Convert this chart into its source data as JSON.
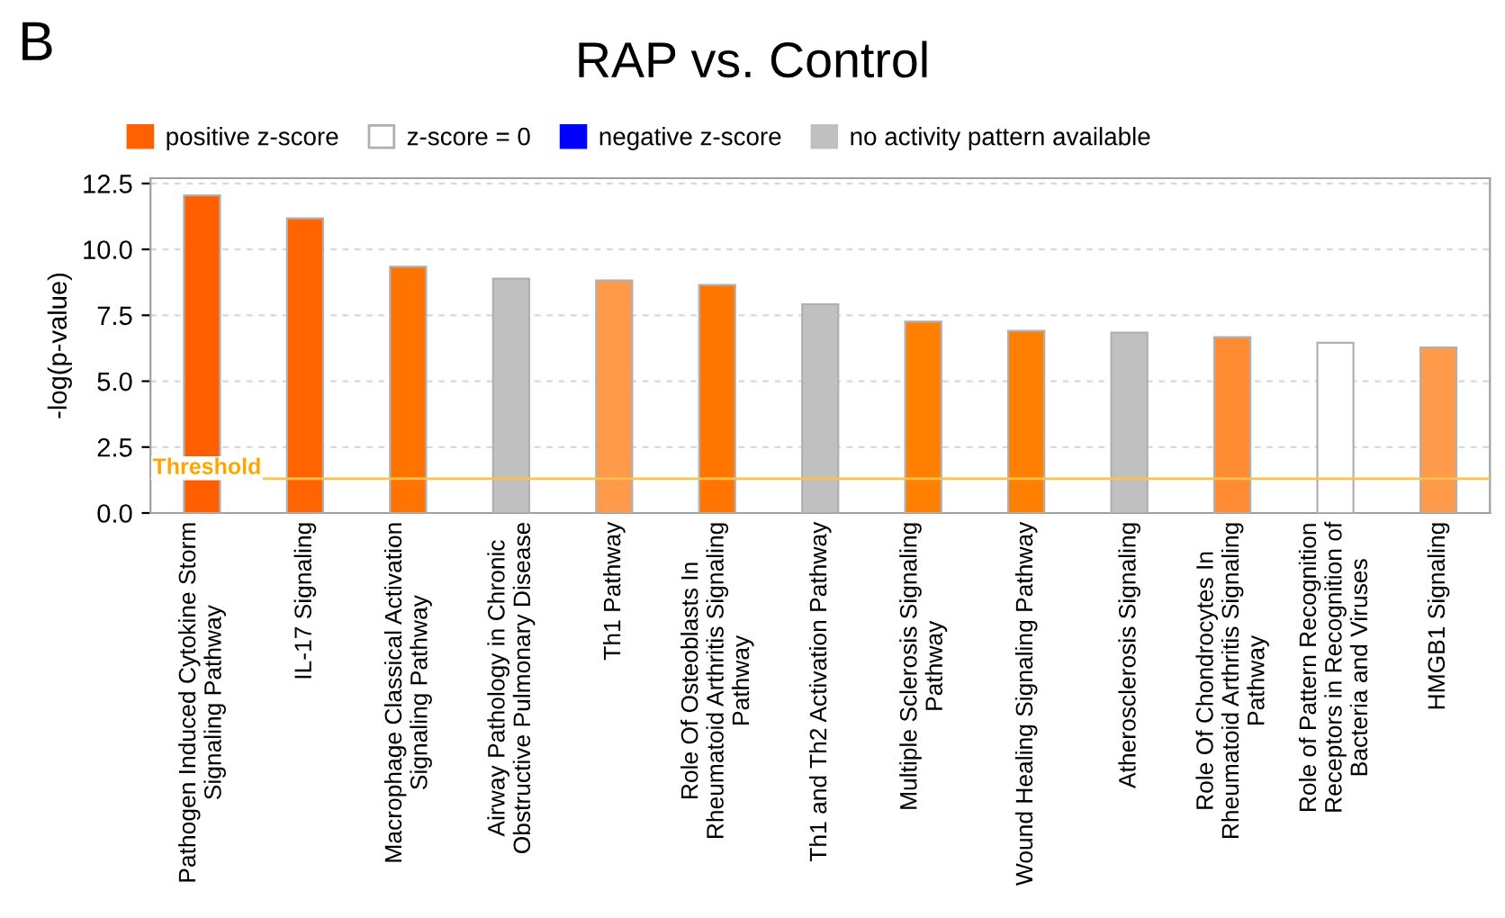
{
  "chart_data": {
    "type": "bar",
    "title": "RAP vs. Control",
    "ylabel": "-log(p-value)",
    "annotations": [
      "B"
    ],
    "categories": [
      "Pathogen Induced Cytokine Storm\nSignaling Pathway",
      "IL-17 Signaling",
      "Macrophage Classical Activation\nSignaling Pathway",
      "Airway Pathology in Chronic\nObstructive Pulmonary Disease",
      "Th1 Pathway",
      "Role Of Osteoblasts In\nRheumatoid Arthritis Signaling\nPathway",
      "Th1 and Th2 Activation Pathway",
      "Multiple Sclerosis Signaling\nPathway",
      "Wound Healing Signaling Pathway",
      "Atherosclerosis Signaling",
      "Role Of Chondrocytes In\nRheumatoid Arthritis Signaling\nPathway",
      "Role of Pattern Recognition\nReceptors in Recognition of\nBacteria and Viruses",
      "HMGB1 Signaling"
    ],
    "series": [
      {
        "name": "positive z-score",
        "color": "#ff6000",
        "colors": [
          "#ff5f00",
          "#ff6400",
          "#ff7300",
          null,
          "#ff9a4a",
          "#ff7500",
          null,
          "#ff8000",
          "#ff8000",
          null,
          "#ff8c33",
          null,
          "#ff9a4a"
        ],
        "values": [
          12.05,
          11.18,
          9.34,
          null,
          8.82,
          8.65,
          null,
          7.26,
          6.91,
          null,
          6.67,
          null,
          6.28
        ]
      },
      {
        "name": "z-score = 0",
        "color": "#ffffff",
        "values": [
          null,
          null,
          null,
          null,
          null,
          null,
          null,
          null,
          null,
          null,
          null,
          6.46,
          null
        ]
      },
      {
        "name": "negative z-score",
        "color": "#0000ff",
        "values": [
          null,
          null,
          null,
          null,
          null,
          null,
          null,
          null,
          null,
          null,
          null,
          null,
          null
        ]
      },
      {
        "name": "no activity pattern available",
        "color": "#c0c0c0",
        "values": [
          null,
          null,
          null,
          8.89,
          null,
          null,
          7.92,
          null,
          null,
          6.84,
          null,
          null,
          null
        ]
      }
    ],
    "ylim": [
      0,
      12.7
    ],
    "yticks": [
      {
        "value": 0,
        "label": "0.0"
      },
      {
        "value": 2.5,
        "label": "2.5"
      },
      {
        "value": 5,
        "label": "5.0"
      },
      {
        "value": 7.5,
        "label": "7.5"
      },
      {
        "value": 10,
        "label": "10.0"
      },
      {
        "value": 12.5,
        "label": "12.5"
      }
    ],
    "grid": "y",
    "legend": "top left",
    "ref_lines": [
      {
        "axis": "y",
        "value": 1.3,
        "label": "Threshold",
        "color": "#ffc04d"
      }
    ]
  }
}
